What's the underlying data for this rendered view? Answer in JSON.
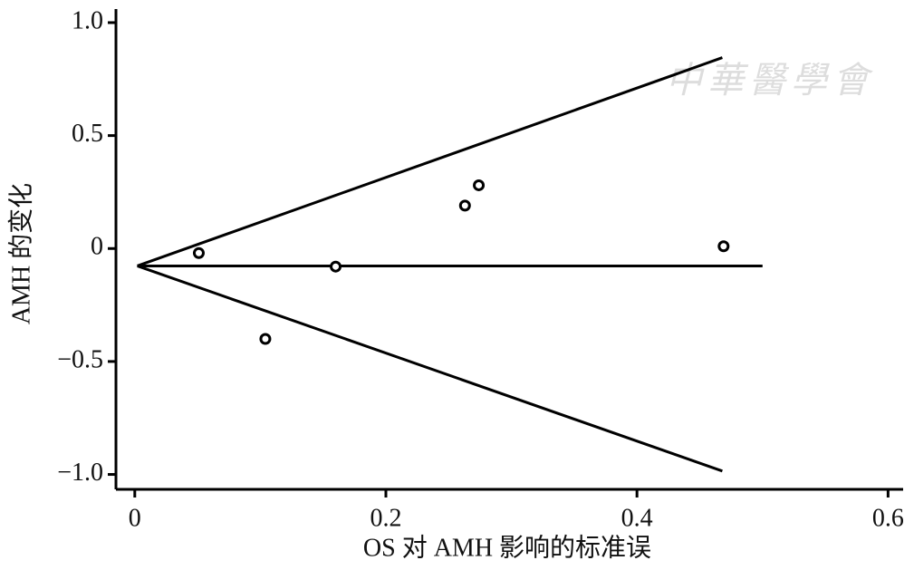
{
  "chart_data": {
    "type": "scatter",
    "xlabel": "OS 对 AMH 影响的标准误",
    "ylabel": "AMH 的变化",
    "watermark": "中華醫學會",
    "x": [
      0.051,
      0.104,
      0.16,
      0.263,
      0.274,
      0.469
    ],
    "y": [
      -0.02,
      -0.4,
      -0.08,
      0.19,
      0.28,
      0.01
    ],
    "color": "#000000",
    "lines": [
      {
        "x": [
          0.002,
          0.5
        ],
        "y": [
          -0.077,
          -0.077
        ]
      },
      {
        "x": [
          0.002,
          0.468
        ],
        "y": [
          -0.077,
          0.845
        ]
      },
      {
        "x": [
          0.002,
          0.468
        ],
        "y": [
          -0.077,
          -0.985
        ]
      }
    ],
    "xlim": [
      -0.015,
      0.612
    ],
    "ylim": [
      -1.066,
      1.06
    ],
    "xticks": [
      0,
      0.2,
      0.4,
      0.6
    ],
    "yticks": [
      {
        "value": 1,
        "label": "1.0"
      },
      0.5,
      0,
      {
        "value": -0.5,
        "label": "−0.5"
      },
      {
        "value": -1,
        "label": "−1.0"
      }
    ]
  }
}
